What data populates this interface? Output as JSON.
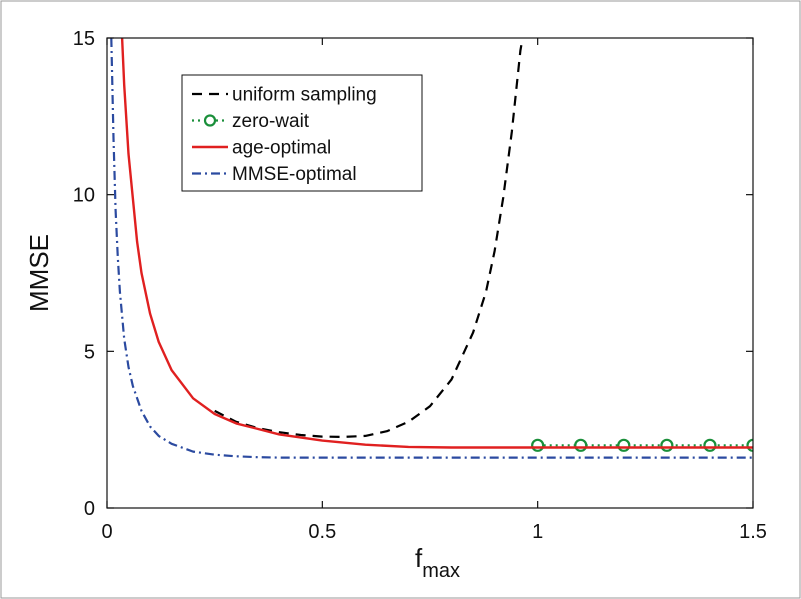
{
  "chart_data": {
    "type": "line",
    "title": "",
    "xlabel": "f",
    "xlabel_subscript": "max",
    "ylabel": "MMSE",
    "xlim": [
      0,
      1.5
    ],
    "ylim": [
      0,
      15
    ],
    "xticks": [
      0,
      0.5,
      1,
      1.5
    ],
    "xtick_labels": [
      "0",
      "0.5",
      "1",
      "1.5"
    ],
    "yticks": [
      0,
      5,
      10,
      15
    ],
    "ytick_labels": [
      "0",
      "5",
      "10",
      "15"
    ],
    "grid": false,
    "legend_position": "top-left",
    "series": [
      {
        "name": "uniform sampling",
        "color": "#000000",
        "style": "dashed",
        "marker": "none",
        "x": [
          0.25,
          0.3,
          0.35,
          0.4,
          0.45,
          0.5,
          0.55,
          0.6,
          0.65,
          0.7,
          0.75,
          0.8,
          0.85,
          0.88,
          0.9,
          0.92,
          0.94,
          0.95,
          0.96,
          0.965
        ],
        "y": [
          3.1,
          2.75,
          2.55,
          2.42,
          2.33,
          2.28,
          2.27,
          2.3,
          2.45,
          2.75,
          3.25,
          4.1,
          5.6,
          6.9,
          8.2,
          9.9,
          12.0,
          13.3,
          14.6,
          15.0
        ]
      },
      {
        "name": "zero-wait",
        "color": "#1a8f3a",
        "style": "dotted",
        "marker": "circle",
        "x": [
          1.0,
          1.1,
          1.2,
          1.3,
          1.4,
          1.5
        ],
        "y": [
          2.0,
          2.0,
          2.0,
          2.0,
          2.0,
          2.0
        ]
      },
      {
        "name": "age-optimal",
        "color": "#e02020",
        "style": "solid",
        "marker": "none",
        "x": [
          0.035,
          0.04,
          0.05,
          0.06,
          0.07,
          0.08,
          0.1,
          0.12,
          0.15,
          0.2,
          0.25,
          0.3,
          0.4,
          0.5,
          0.6,
          0.7,
          0.8,
          1.0,
          1.2,
          1.5
        ],
        "y": [
          15.0,
          13.5,
          11.3,
          9.9,
          8.5,
          7.5,
          6.2,
          5.3,
          4.4,
          3.5,
          3.0,
          2.7,
          2.35,
          2.15,
          2.02,
          1.95,
          1.93,
          1.93,
          1.93,
          1.93
        ]
      },
      {
        "name": "MMSE-optimal",
        "color": "#2b4aa0",
        "style": "dashdot",
        "marker": "none",
        "x": [
          0.01,
          0.015,
          0.02,
          0.025,
          0.03,
          0.04,
          0.05,
          0.06,
          0.08,
          0.1,
          0.12,
          0.15,
          0.2,
          0.25,
          0.3,
          0.35,
          0.4,
          0.5,
          0.7,
          1.0,
          1.5
        ],
        "y": [
          15.0,
          11.8,
          9.5,
          8.0,
          6.9,
          5.4,
          4.5,
          3.9,
          3.1,
          2.6,
          2.3,
          2.05,
          1.8,
          1.7,
          1.65,
          1.62,
          1.61,
          1.61,
          1.61,
          1.61,
          1.61
        ]
      }
    ]
  }
}
